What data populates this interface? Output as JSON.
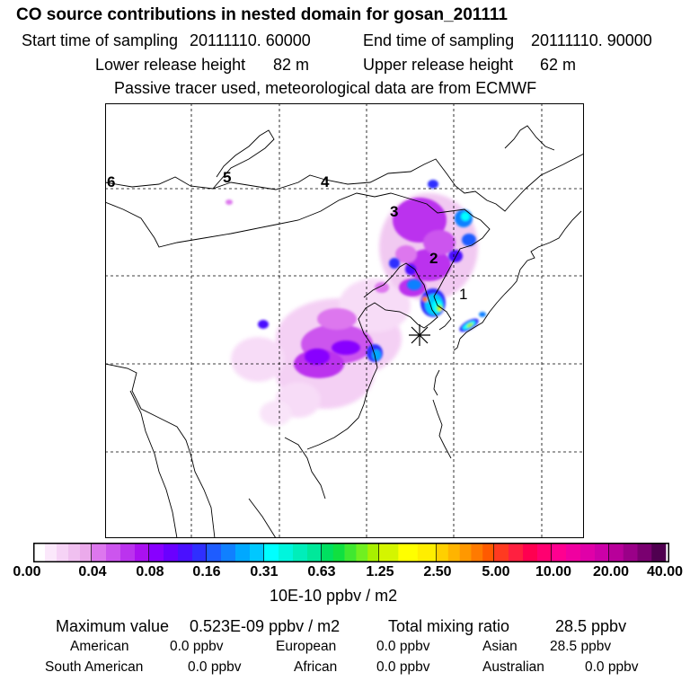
{
  "header": {
    "title": "CO  source contributions in nested domain for gosan_201111",
    "start_label": "Start time of sampling",
    "start_value": "20111110. 60000",
    "end_label": "End time of sampling",
    "end_value": "20111110. 90000",
    "lower_label": "Lower release height",
    "lower_value": "82 m",
    "upper_label": "Upper release height",
    "upper_value": "62 m",
    "tracer_note": "Passive tracer used, meteorological data are from ECMWF"
  },
  "map": {
    "station_marker": "asterisk-icon",
    "trajectory_labels": [
      "1",
      "2",
      "3",
      "4",
      "5",
      "6"
    ]
  },
  "colorbar": {
    "ticks": [
      "0.00",
      "0.04",
      "0.08",
      "0.16",
      "0.31",
      "0.63",
      "1.25",
      "2.50",
      "5.00",
      "10.00",
      "20.00",
      "40.00"
    ],
    "units": "10E-10 ppbv / m2",
    "colors": [
      [
        "#ffffff",
        "#fbe8fb",
        "#f6d3f6",
        "#f0c0f0",
        "#ebaaeb"
      ],
      [
        "#dd77ee",
        "#cc55ee",
        "#bb33ee",
        "#aa11f0"
      ],
      [
        "#8800ff",
        "#6a00ff",
        "#4a10ff",
        "#2f2fff"
      ],
      [
        "#1e5cff",
        "#1080ff",
        "#00a8ff",
        "#00c8ff"
      ],
      [
        "#00ffff",
        "#00f5dd",
        "#00eeba",
        "#00e89a"
      ],
      [
        "#00e060",
        "#10e040",
        "#40e830",
        "#70f020",
        "#a8f000"
      ],
      [
        "#d4f500",
        "#ffff00",
        "#ffee00"
      ],
      [
        "#ffd000",
        "#ffb400",
        "#ff9800",
        "#ff7a00",
        "#ff5a00"
      ],
      [
        "#ff3a20",
        "#ff2040",
        "#ff0050",
        "#ff0070"
      ],
      [
        "#ff0090",
        "#f000a0",
        "#e000a8",
        "#cc00a8"
      ],
      [
        "#b8009a",
        "#9a0088",
        "#7a0070",
        "#500050"
      ]
    ]
  },
  "summary": {
    "max_label": "Maximum value",
    "max_value": "0.523E-09 ppbv / m2",
    "total_label": "Total mixing ratio",
    "total_value": "28.5 ppbv"
  },
  "regions": [
    {
      "name": "American",
      "value": "0.0 ppbv"
    },
    {
      "name": "European",
      "value": "0.0 ppbv"
    },
    {
      "name": "Asian",
      "value": "28.5 ppbv"
    },
    {
      "name": "South American",
      "value": "0.0 ppbv"
    },
    {
      "name": "African",
      "value": "0.0 ppbv"
    },
    {
      "name": "Australian",
      "value": "0.0 ppbv"
    }
  ]
}
